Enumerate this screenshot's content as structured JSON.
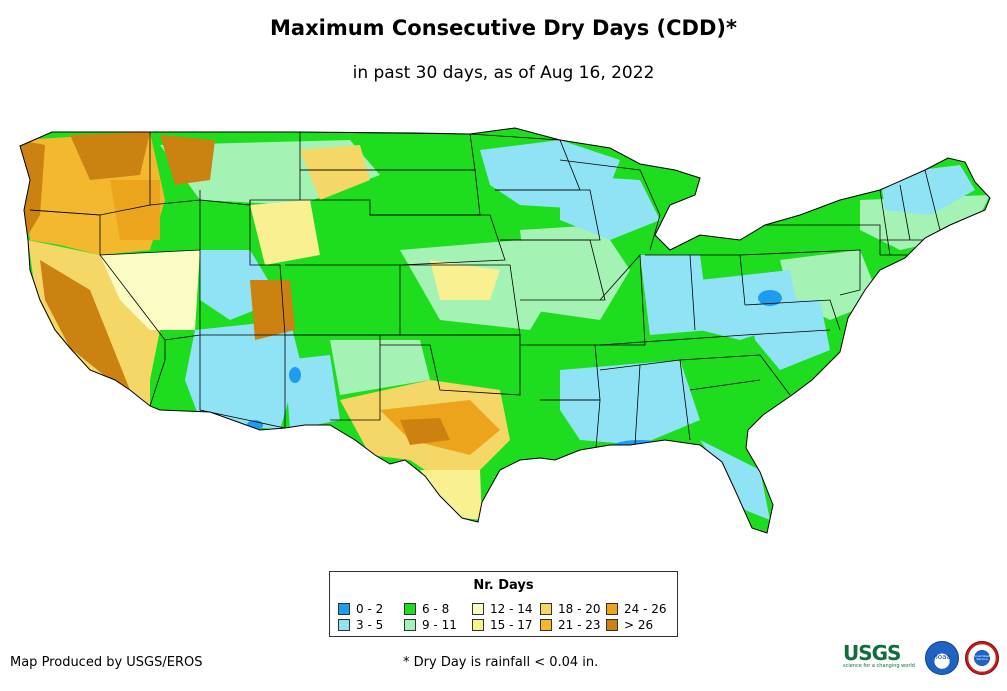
{
  "title": "Maximum Consecutive Dry Days (CDD)*",
  "subtitle": "in past 30 days, as of Aug 16, 2022",
  "legend": {
    "title": "Nr. Days",
    "items": [
      {
        "label": "0 - 2",
        "color": "#1e9cf0"
      },
      {
        "label": "3 - 5",
        "color": "#8fe3f5"
      },
      {
        "label": "6 - 8",
        "color": "#1edc1e"
      },
      {
        "label": "9 - 11",
        "color": "#a5f3b4"
      },
      {
        "label": "12 - 14",
        "color": "#fbfbc4"
      },
      {
        "label": "15 - 17",
        "color": "#f9f091"
      },
      {
        "label": "18 - 20",
        "color": "#f5d768"
      },
      {
        "label": "21 - 23",
        "color": "#f3b82d"
      },
      {
        "label": "24 - 26",
        "color": "#eba41c"
      },
      {
        "label": "> 26",
        "color": "#cc8210"
      }
    ]
  },
  "credit": "Map Produced by USGS/EROS",
  "footnote": "* Dry Day is rainfall < 0.04 in.",
  "logos": {
    "usgs": "USGS",
    "usgs_tagline": "science for a changing world",
    "noaa": "noaa",
    "nws": "National Weather Service"
  }
}
